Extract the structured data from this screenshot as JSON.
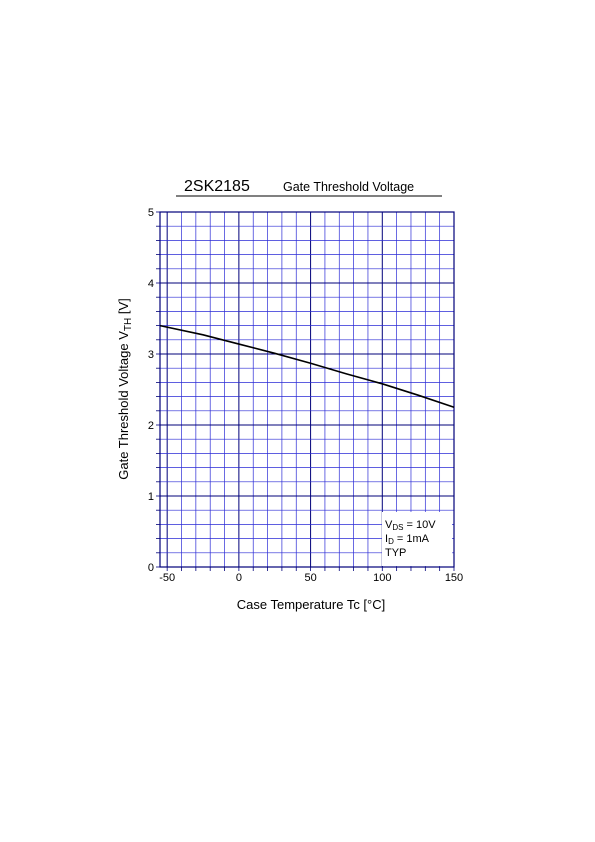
{
  "chart_data": {
    "type": "line",
    "title_part": "2SK2185",
    "title": "Gate Threshold Voltage",
    "xlabel": "Case Temperature  Tc  [°C]",
    "ylabel": {
      "text": "Gate Threshold Voltage  V",
      "sub": "TH",
      "unit": " [V]"
    },
    "xlim": [
      -55,
      150
    ],
    "ylim": [
      0,
      5
    ],
    "x_ticks": [
      -50,
      0,
      50,
      100,
      150
    ],
    "x_tick_labels": [
      "-50",
      "0",
      "50",
      "100",
      "150"
    ],
    "y_ticks": [
      0,
      1,
      2,
      3,
      4,
      5
    ],
    "y_tick_labels": [
      "0",
      "1",
      "2",
      "3",
      "4",
      "5"
    ],
    "grid": true,
    "conditions": [
      {
        "text": "V",
        "sub": "DS",
        "rest": " = 10V"
      },
      {
        "text": "I",
        "sub": "D",
        "rest": " = 1mA"
      },
      {
        "text": "TYP",
        "sub": "",
        "rest": ""
      }
    ],
    "series": [
      {
        "x": [
          -55,
          -25,
          0,
          25,
          50,
          75,
          100,
          125,
          150
        ],
        "y": [
          3.4,
          3.27,
          3.14,
          3.01,
          2.87,
          2.72,
          2.58,
          2.42,
          2.25
        ]
      }
    ]
  }
}
